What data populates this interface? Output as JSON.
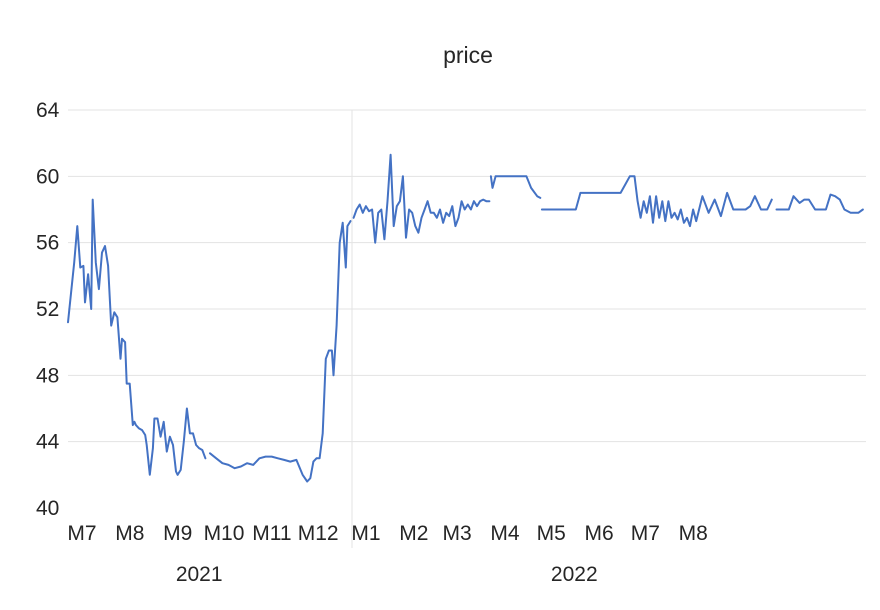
{
  "chart_data": {
    "type": "line",
    "title": "price",
    "xlabel": "",
    "ylabel": "",
    "ylim": [
      40,
      64
    ],
    "yticks": [
      40,
      44,
      48,
      52,
      56,
      60,
      64
    ],
    "grid": true,
    "legend": "none",
    "colors": {
      "line": "#4472c4",
      "grid": "#e3e3e3"
    },
    "x_month_labels": [
      "M7",
      "M8",
      "M9",
      "M10",
      "M11",
      "M12",
      "M1",
      "M2",
      "M3",
      "M4",
      "M5",
      "M6",
      "M7",
      "M8"
    ],
    "x_year_labels": [
      "2021",
      "2022"
    ],
    "series": [
      {
        "segments": [
          {
            "x": [
              "2021-07-01",
              "2021-07-03",
              "2021-07-05",
              "2021-07-07",
              "2021-07-09",
              "2021-07-11",
              "2021-07-12",
              "2021-07-14",
              "2021-07-16",
              "2021-07-17",
              "2021-07-19",
              "2021-07-21",
              "2021-07-23",
              "2021-07-25",
              "2021-07-27",
              "2021-07-29",
              "2021-07-31",
              "2021-08-02",
              "2021-08-04",
              "2021-08-05",
              "2021-08-07",
              "2021-08-08",
              "2021-08-10",
              "2021-08-12",
              "2021-08-13",
              "2021-08-14",
              "2021-08-16",
              "2021-08-18",
              "2021-08-20",
              "2021-08-21",
              "2021-08-23",
              "2021-08-25",
              "2021-08-26",
              "2021-08-28",
              "2021-08-30",
              "2021-09-01",
              "2021-09-03",
              "2021-09-05",
              "2021-09-07",
              "2021-09-09",
              "2021-09-10",
              "2021-09-12",
              "2021-09-14",
              "2021-09-16",
              "2021-09-18",
              "2021-09-20",
              "2021-09-22",
              "2021-09-24",
              "2021-09-26",
              "2021-09-28"
            ],
            "y": [
              51.2,
              53.0,
              54.8,
              57.0,
              54.5,
              54.6,
              52.4,
              54.1,
              52.0,
              58.6,
              54.8,
              53.2,
              55.4,
              55.8,
              54.6,
              51.0,
              51.8,
              51.5,
              49.0,
              50.2,
              50.0,
              47.5,
              47.5,
              45.0,
              45.2,
              45.0,
              44.8,
              44.7,
              44.4,
              43.8,
              42.0,
              43.6,
              45.4,
              45.4,
              44.3,
              45.2,
              43.4,
              44.3,
              43.8,
              42.2,
              42.0,
              42.3,
              44.0,
              46.0,
              44.5,
              44.5,
              43.8,
              43.6,
              43.5,
              43.0
            ]
          },
          {
            "x": [
              "2021-10-01",
              "2021-10-05",
              "2021-10-09",
              "2021-10-13",
              "2021-10-17",
              "2021-10-21",
              "2021-10-25",
              "2021-10-29",
              "2021-11-02",
              "2021-11-06",
              "2021-11-10",
              "2021-11-14",
              "2021-11-18",
              "2021-11-22",
              "2021-11-26",
              "2021-11-30",
              "2021-12-03",
              "2021-12-05",
              "2021-12-07",
              "2021-12-09",
              "2021-12-11",
              "2021-12-13",
              "2021-12-15",
              "2021-12-17",
              "2021-12-19",
              "2021-12-20",
              "2021-12-22",
              "2021-12-24",
              "2021-12-26",
              "2021-12-28",
              "2021-12-29",
              "2021-12-31"
            ],
            "y": [
              43.3,
              43.0,
              42.7,
              42.6,
              42.4,
              42.5,
              42.7,
              42.6,
              43.0,
              43.1,
              43.1,
              43.0,
              42.9,
              42.8,
              42.9,
              42.0,
              41.6,
              41.8,
              42.8,
              43.0,
              43.0,
              44.5,
              49.0,
              49.5,
              49.5,
              48.0,
              51.0,
              56.0,
              57.2,
              54.5,
              57.0,
              57.3
            ]
          },
          {
            "x": [
              "2022-01-02",
              "2022-01-04",
              "2022-01-06",
              "2022-01-08",
              "2022-01-10",
              "2022-01-12",
              "2022-01-14",
              "2022-01-16",
              "2022-01-18",
              "2022-01-20",
              "2022-01-22",
              "2022-01-24",
              "2022-01-26",
              "2022-01-28",
              "2022-01-30",
              "2022-02-01",
              "2022-02-03",
              "2022-02-05",
              "2022-02-07",
              "2022-02-09",
              "2022-02-11",
              "2022-02-13",
              "2022-02-15",
              "2022-02-17",
              "2022-02-19",
              "2022-02-21",
              "2022-02-23",
              "2022-02-25",
              "2022-02-27",
              "2022-03-01",
              "2022-03-03",
              "2022-03-05",
              "2022-03-07",
              "2022-03-09",
              "2022-03-11",
              "2022-03-13",
              "2022-03-15",
              "2022-03-17",
              "2022-03-19",
              "2022-03-21",
              "2022-03-23",
              "2022-03-25",
              "2022-03-27",
              "2022-03-29",
              "2022-03-31"
            ],
            "y": [
              57.5,
              58.0,
              58.3,
              57.8,
              58.2,
              57.9,
              58.0,
              56.0,
              57.8,
              58.0,
              56.2,
              58.5,
              61.3,
              57.0,
              58.2,
              58.5,
              60.0,
              56.3,
              58.0,
              57.8,
              57.0,
              56.6,
              57.5,
              58.0,
              58.5,
              57.8,
              57.8,
              57.5,
              58.0,
              57.2,
              57.8,
              57.6,
              58.2,
              57.0,
              57.5,
              58.5,
              58.0,
              58.3,
              58.0,
              58.5,
              58.2,
              58.5,
              58.6,
              58.5,
              58.5
            ]
          },
          {
            "x": [
              "2022-04-01",
              "2022-04-02",
              "2022-04-04",
              "2022-04-08",
              "2022-04-14",
              "2022-04-20",
              "2022-04-24",
              "2022-04-27",
              "2022-05-01",
              "2022-05-03"
            ],
            "y": [
              60.0,
              59.3,
              60.0,
              60.0,
              60.0,
              60.0,
              60.0,
              59.3,
              58.8,
              58.7
            ]
          },
          {
            "x": [
              "2022-05-04",
              "2022-05-10",
              "2022-05-18",
              "2022-05-22",
              "2022-05-26",
              "2022-05-29",
              "2022-06-03",
              "2022-06-10",
              "2022-06-16",
              "2022-06-20",
              "2022-06-24",
              "2022-06-27",
              "2022-06-30",
              "2022-07-02",
              "2022-07-03",
              "2022-07-05",
              "2022-07-07",
              "2022-07-09",
              "2022-07-11",
              "2022-07-13",
              "2022-07-15",
              "2022-07-17",
              "2022-07-19",
              "2022-07-21",
              "2022-07-23",
              "2022-07-25",
              "2022-07-27",
              "2022-07-29",
              "2022-07-31",
              "2022-08-02",
              "2022-08-04",
              "2022-08-06",
              "2022-08-08",
              "2022-08-10",
              "2022-08-12",
              "2022-08-16",
              "2022-08-20",
              "2022-08-24",
              "2022-08-28",
              "2022-09-01",
              "2022-09-05",
              "2022-09-09",
              "2022-09-13",
              "2022-09-16",
              "2022-09-19",
              "2022-09-23",
              "2022-09-27",
              "2022-09-30"
            ],
            "y": [
              58.0,
              58.0,
              58.0,
              58.0,
              58.0,
              59.0,
              59.0,
              59.0,
              59.0,
              59.0,
              59.0,
              59.5,
              60.0,
              60.0,
              60.0,
              58.5,
              57.5,
              58.5,
              57.8,
              58.8,
              57.2,
              58.8,
              57.5,
              58.5,
              57.3,
              58.5,
              57.5,
              57.8,
              57.4,
              58.0,
              57.2,
              57.5,
              57.0,
              58.0,
              57.3,
              58.8,
              57.8,
              58.6,
              57.6,
              59.0,
              58.0,
              58.0,
              58.0,
              58.2,
              58.8,
              58.0,
              58.0,
              58.6
            ]
          },
          {
            "x": [
              "2022-10-03",
              "2022-10-05",
              "2022-10-08",
              "2022-10-11",
              "2022-10-14",
              "2022-10-18",
              "2022-10-21",
              "2022-10-24",
              "2022-10-28",
              "2022-10-31",
              "2022-11-04",
              "2022-11-07",
              "2022-11-10",
              "2022-11-13",
              "2022-11-16",
              "2022-11-20",
              "2022-11-25",
              "2022-11-28"
            ],
            "y": [
              58.0,
              58.0,
              58.0,
              58.0,
              58.8,
              58.4,
              58.6,
              58.6,
              58.0,
              58.0,
              58.0,
              58.9,
              58.8,
              58.6,
              58.0,
              57.8,
              57.8,
              58.0
            ]
          }
        ]
      }
    ]
  }
}
